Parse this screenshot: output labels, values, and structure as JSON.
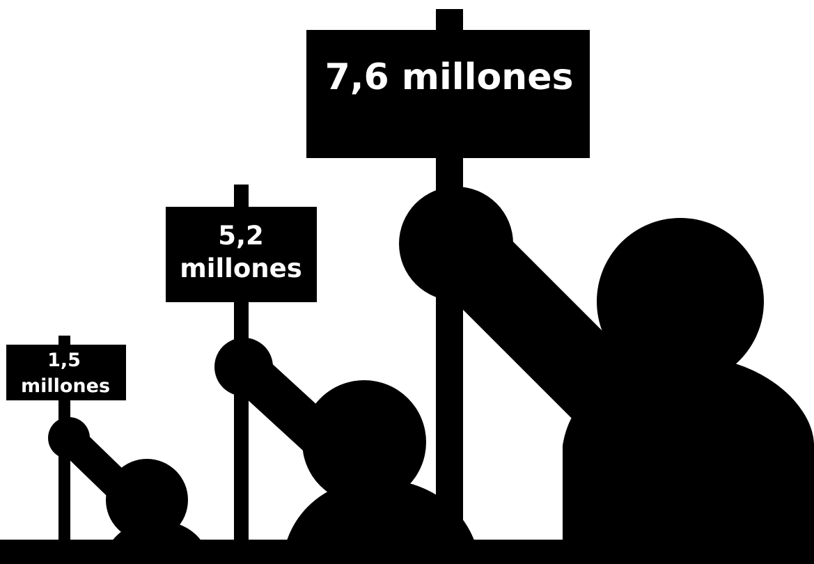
{
  "figures": [
    {
      "id": "small",
      "sign_lines": [
        "1,5",
        "millones"
      ]
    },
    {
      "id": "medium",
      "sign_lines": [
        "5,2",
        "millones"
      ]
    },
    {
      "id": "large",
      "sign_lines": [
        "7,6 millones"
      ]
    }
  ],
  "colors": {
    "background": "#ffffff",
    "silhouette": "#000000",
    "sign_text": "#ffffff"
  }
}
